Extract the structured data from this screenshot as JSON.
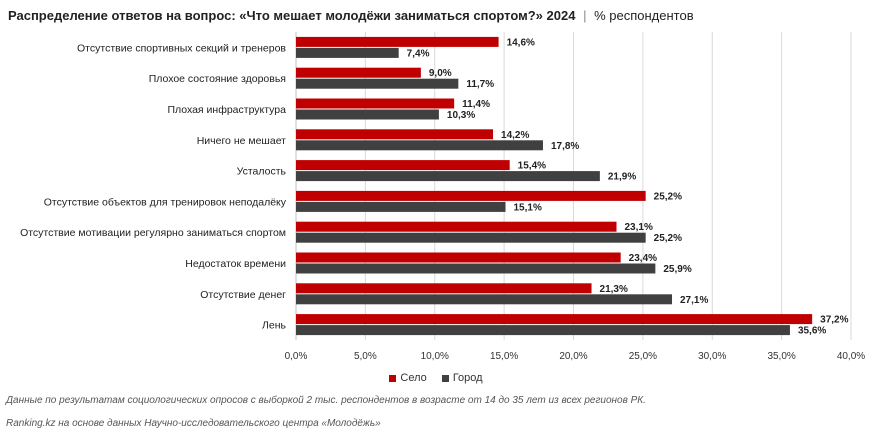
{
  "header": {
    "title": "Распределение ответов на вопрос: «Что мешает молодёжи заниматься спортом?» 2024",
    "separator": "|",
    "subtitle": "% респондентов"
  },
  "colors": {
    "selo": "#c00000",
    "gorod": "#404040",
    "grid": "#d9d9d9"
  },
  "chart_data": {
    "type": "bar",
    "orientation": "horizontal",
    "categories": [
      "Отсутствие спортивных секций и тренеров",
      "Плохое состояние здоровья",
      "Плохая инфраструктура",
      "Ничего не мешает",
      "Усталость",
      "Отсутствие объектов для тренировок неподалёку",
      "Отсутствие мотивации регулярно заниматься спортом",
      "Недостаток времени",
      "Отсутствие денег",
      "Лень"
    ],
    "series": [
      {
        "name": "Село",
        "color": "#c00000",
        "values": [
          14.6,
          9.0,
          11.4,
          14.2,
          15.4,
          25.2,
          23.1,
          23.4,
          21.3,
          37.2
        ],
        "labels": [
          "14,6%",
          "9,0%",
          "11,4%",
          "14,2%",
          "15,4%",
          "25,2%",
          "23,1%",
          "23,4%",
          "21,3%",
          "37,2%"
        ]
      },
      {
        "name": "Город",
        "color": "#404040",
        "values": [
          7.4,
          11.7,
          10.3,
          17.8,
          21.9,
          15.1,
          25.2,
          25.9,
          27.1,
          35.6
        ],
        "labels": [
          "7,4%",
          "11,7%",
          "10,3%",
          "17,8%",
          "21,9%",
          "15,1%",
          "25,2%",
          "25,9%",
          "27,1%",
          "35,6%"
        ]
      }
    ],
    "xlim": [
      0,
      40
    ],
    "xticks": [
      0,
      5,
      10,
      15,
      20,
      25,
      30,
      35,
      40
    ],
    "xtick_labels": [
      "0,0%",
      "5,0%",
      "10,0%",
      "15,0%",
      "20,0%",
      "25,0%",
      "30,0%",
      "35,0%",
      "40,0%"
    ],
    "grid": true,
    "legend_position": "bottom"
  },
  "footnotes": {
    "note1": "Данные по результатам социологических опросов с выборкой 2 тыс. респондентов в возрасте от 14 до 35 лет из всех регионов РК.",
    "note2": "Ranking.kz на основе данных Научно-исследовательского центра «Молодёжь»"
  }
}
